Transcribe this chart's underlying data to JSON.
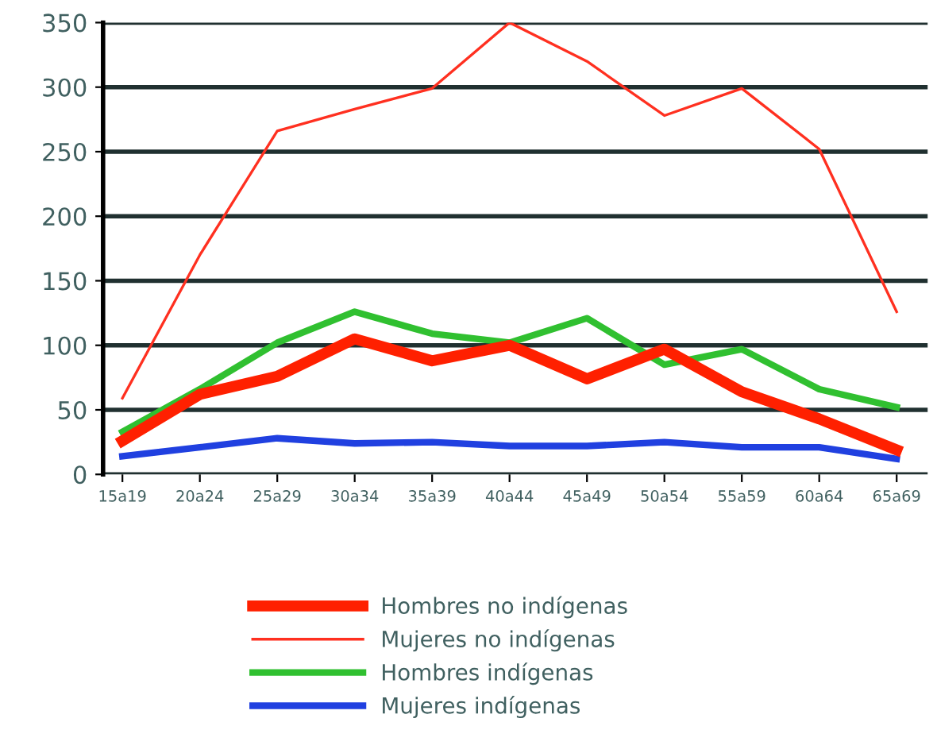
{
  "chart_data": {
    "type": "line",
    "categories": [
      "15a19",
      "20a24",
      "25a29",
      "30a34",
      "35a39",
      "40a44",
      "45a49",
      "50a54",
      "55a59",
      "60a64",
      "65a69"
    ],
    "series": [
      {
        "name": "Hombres no indígenas",
        "color": "#ff2000",
        "values": [
          26,
          62,
          76,
          105,
          88,
          100,
          74,
          97,
          64,
          43,
          19
        ]
      },
      {
        "name": "Mujeres no indígenas",
        "color": "#ff3020",
        "values": [
          59,
          170,
          266,
          283,
          299,
          350,
          320,
          278,
          299,
          252,
          126
        ]
      },
      {
        "name": "Hombres indígenas",
        "color": "#30c030",
        "values": [
          33,
          66,
          102,
          126,
          109,
          102,
          121,
          85,
          97,
          66,
          52
        ]
      },
      {
        "name": "Mujeres indígenas",
        "color": "#2040e0",
        "values": [
          14,
          21,
          28,
          24,
          25,
          22,
          22,
          25,
          21,
          21,
          12
        ]
      }
    ],
    "ylim": [
      0,
      350
    ],
    "yticks": [
      0,
      50,
      100,
      150,
      200,
      250,
      300,
      350
    ],
    "grid": "y",
    "legend": "bottom"
  }
}
